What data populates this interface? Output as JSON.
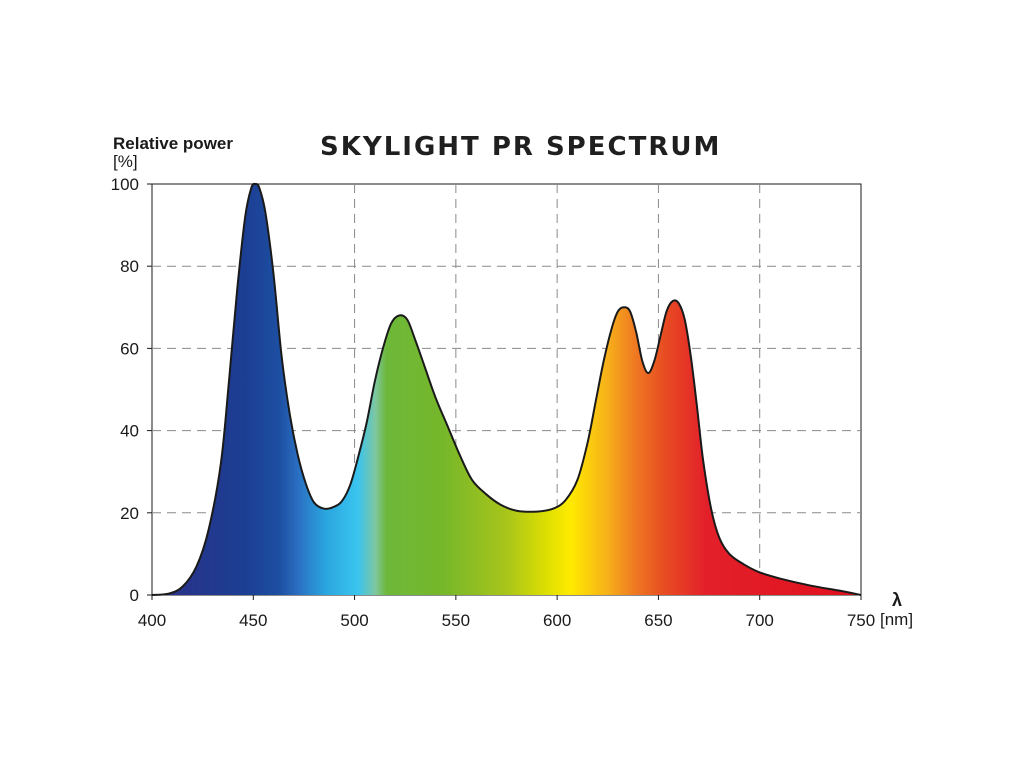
{
  "chart_data": {
    "type": "area",
    "title": "SKYLIGHT PR SPECTRUM",
    "ylabel": "Relative power",
    "yunit": "[%]",
    "xlabel": "λ",
    "xunit": "[nm]",
    "xlim": [
      400,
      750
    ],
    "ylim": [
      0,
      100
    ],
    "xticks": [
      400,
      450,
      500,
      550,
      600,
      650,
      700,
      750
    ],
    "yticks": [
      0,
      20,
      40,
      60,
      80,
      100
    ],
    "grid": true,
    "grid_style": "dashed",
    "fill": "visible-spectrum gradient",
    "x": [
      400,
      408,
      415,
      422,
      428,
      434,
      438,
      442,
      446,
      449,
      451,
      453,
      456,
      460,
      464,
      468,
      472,
      476,
      480,
      485,
      490,
      494,
      498,
      502,
      506,
      510,
      514,
      518,
      522,
      526,
      530,
      535,
      540,
      546,
      552,
      558,
      565,
      572,
      580,
      590,
      598,
      604,
      610,
      615,
      619,
      623,
      627,
      630,
      633,
      636,
      639,
      642,
      645,
      648,
      651,
      654,
      657,
      660,
      663,
      666,
      669,
      672,
      676,
      680,
      685,
      692,
      700,
      710,
      725,
      740,
      750
    ],
    "y": [
      0,
      0.3,
      2,
      7,
      16,
      32,
      52,
      74,
      92,
      99,
      100,
      99,
      93,
      78,
      58,
      44,
      34,
      27,
      22.5,
      21,
      21.5,
      23,
      27,
      34,
      42,
      52,
      60,
      66,
      68,
      67,
      62,
      55,
      48,
      41,
      34,
      28,
      24.5,
      22,
      20.5,
      20.3,
      21,
      23,
      28,
      37,
      47,
      57,
      65,
      69,
      70,
      69,
      64,
      57,
      54,
      57,
      63,
      69,
      71.5,
      71,
      67,
      58,
      46,
      33,
      21,
      14,
      10,
      7.5,
      5.5,
      4,
      2.3,
      1,
      0
    ]
  }
}
